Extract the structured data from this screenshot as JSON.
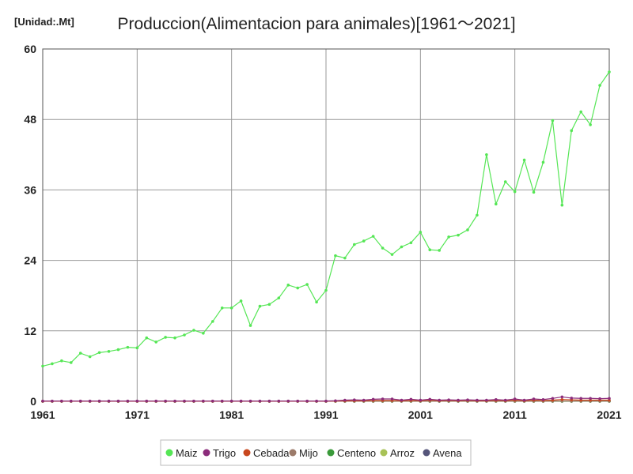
{
  "unit_label": "[Unidad:.Mt]",
  "chart_data": {
    "type": "line",
    "title": "Produccion(Alimentacion para animales)[1961～2021]",
    "ylim": [
      0,
      60
    ],
    "xlim": [
      1961,
      2021
    ],
    "yticks": [
      0,
      12,
      24,
      36,
      48,
      60
    ],
    "xticks": [
      1961,
      1971,
      1981,
      1991,
      2001,
      2011,
      2021
    ],
    "grid": true,
    "legend_position": "bottom",
    "x": [
      1961,
      1962,
      1963,
      1964,
      1965,
      1966,
      1967,
      1968,
      1969,
      1970,
      1971,
      1972,
      1973,
      1974,
      1975,
      1976,
      1977,
      1978,
      1979,
      1980,
      1981,
      1982,
      1983,
      1984,
      1985,
      1986,
      1987,
      1988,
      1989,
      1990,
      1991,
      1992,
      1993,
      1994,
      1995,
      1996,
      1997,
      1998,
      1999,
      2000,
      2001,
      2002,
      2003,
      2004,
      2005,
      2006,
      2007,
      2008,
      2009,
      2010,
      2011,
      2012,
      2013,
      2014,
      2015,
      2016,
      2017,
      2018,
      2019,
      2020,
      2021
    ],
    "series": [
      {
        "name": "Maiz",
        "color": "#55e655",
        "values": [
          6.0,
          6.4,
          6.9,
          6.6,
          8.2,
          7.6,
          8.3,
          8.5,
          8.8,
          9.2,
          9.1,
          10.8,
          10.1,
          10.9,
          10.8,
          11.3,
          12.1,
          11.6,
          13.6,
          15.9,
          15.9,
          17.1,
          12.9,
          16.2,
          16.5,
          17.6,
          19.8,
          19.3,
          19.9,
          16.9,
          18.9,
          24.8,
          24.4,
          26.7,
          27.3,
          28.1,
          26.1,
          25.0,
          26.3,
          27.0,
          28.8,
          25.8,
          25.7,
          28.0,
          28.3,
          29.2,
          31.7,
          42.0,
          33.6,
          37.4,
          35.7,
          41.1,
          35.6,
          40.7,
          47.8,
          33.4,
          46.1,
          49.3,
          47.1,
          53.8,
          56.1
        ]
      },
      {
        "name": "Trigo",
        "color": "#8b2c7b",
        "values": [
          0.05,
          0.05,
          0.05,
          0.05,
          0.05,
          0.05,
          0.05,
          0.05,
          0.05,
          0.05,
          0.05,
          0.05,
          0.05,
          0.05,
          0.05,
          0.05,
          0.05,
          0.05,
          0.05,
          0.05,
          0.05,
          0.05,
          0.05,
          0.05,
          0.05,
          0.05,
          0.05,
          0.05,
          0.05,
          0.05,
          0.05,
          0.1,
          0.2,
          0.25,
          0.2,
          0.35,
          0.4,
          0.4,
          0.2,
          0.35,
          0.2,
          0.35,
          0.2,
          0.25,
          0.2,
          0.25,
          0.2,
          0.2,
          0.3,
          0.2,
          0.4,
          0.2,
          0.4,
          0.3,
          0.5,
          0.75,
          0.55,
          0.5,
          0.5,
          0.45,
          0.5
        ]
      },
      {
        "name": "Cebada",
        "color": "#c8471e",
        "values": [
          0.02,
          0.02,
          0.02,
          0.02,
          0.02,
          0.02,
          0.02,
          0.02,
          0.02,
          0.02,
          0.02,
          0.02,
          0.02,
          0.02,
          0.02,
          0.02,
          0.02,
          0.02,
          0.02,
          0.02,
          0.02,
          0.02,
          0.02,
          0.02,
          0.02,
          0.02,
          0.02,
          0.02,
          0.02,
          0.02,
          0.02,
          0.05,
          0.08,
          0.1,
          0.1,
          0.15,
          0.15,
          0.15,
          0.1,
          0.15,
          0.1,
          0.2,
          0.1,
          0.15,
          0.1,
          0.15,
          0.1,
          0.1,
          0.15,
          0.1,
          0.2,
          0.1,
          0.2,
          0.15,
          0.2,
          0.3,
          0.25,
          0.2,
          0.2,
          0.2,
          0.2
        ]
      },
      {
        "name": "Mijo",
        "color": "#9c7b6a",
        "values": [
          0.01,
          0.01,
          0.01,
          0.01,
          0.01,
          0.01,
          0.01,
          0.01,
          0.01,
          0.01,
          0.01,
          0.01,
          0.01,
          0.01,
          0.01,
          0.01,
          0.01,
          0.01,
          0.01,
          0.01,
          0.01,
          0.01,
          0.01,
          0.01,
          0.01,
          0.01,
          0.01,
          0.01,
          0.01,
          0.01,
          0.01,
          0.02,
          0.02,
          0.02,
          0.02,
          0.03,
          0.03,
          0.03,
          0.02,
          0.03,
          0.02,
          0.03,
          0.02,
          0.03,
          0.02,
          0.03,
          0.02,
          0.02,
          0.03,
          0.02,
          0.03,
          0.02,
          0.03,
          0.02,
          0.03,
          0.04,
          0.03,
          0.03,
          0.03,
          0.03,
          0.03
        ]
      },
      {
        "name": "Centeno",
        "color": "#3a9a3a",
        "values": [
          0.01,
          0.01,
          0.01,
          0.01,
          0.01,
          0.01,
          0.01,
          0.01,
          0.01,
          0.01,
          0.01,
          0.01,
          0.01,
          0.01,
          0.01,
          0.01,
          0.01,
          0.01,
          0.01,
          0.01,
          0.01,
          0.01,
          0.01,
          0.01,
          0.01,
          0.01,
          0.01,
          0.01,
          0.01,
          0.01,
          0.01,
          0.01,
          0.01,
          0.01,
          0.01,
          0.01,
          0.01,
          0.01,
          0.01,
          0.01,
          0.01,
          0.01,
          0.01,
          0.01,
          0.01,
          0.01,
          0.01,
          0.01,
          0.01,
          0.01,
          0.01,
          0.01,
          0.01,
          0.01,
          0.01,
          0.01,
          0.01,
          0.01,
          0.01,
          0.01,
          0.01
        ]
      },
      {
        "name": "Arroz",
        "color": "#a8c257",
        "values": [
          0.01,
          0.01,
          0.01,
          0.01,
          0.01,
          0.01,
          0.01,
          0.01,
          0.01,
          0.01,
          0.01,
          0.01,
          0.01,
          0.01,
          0.01,
          0.01,
          0.01,
          0.01,
          0.01,
          0.01,
          0.01,
          0.01,
          0.01,
          0.01,
          0.01,
          0.01,
          0.01,
          0.01,
          0.01,
          0.01,
          0.01,
          0.01,
          0.01,
          0.01,
          0.01,
          0.01,
          0.01,
          0.01,
          0.01,
          0.01,
          0.01,
          0.01,
          0.01,
          0.01,
          0.01,
          0.01,
          0.01,
          0.01,
          0.01,
          0.01,
          0.01,
          0.01,
          0.01,
          0.01,
          0.01,
          0.01,
          0.01,
          0.01,
          0.01,
          0.01,
          0.01
        ]
      },
      {
        "name": "Avena",
        "color": "#55557a",
        "values": [
          0.01,
          0.01,
          0.01,
          0.01,
          0.01,
          0.01,
          0.01,
          0.01,
          0.01,
          0.01,
          0.01,
          0.01,
          0.01,
          0.01,
          0.01,
          0.01,
          0.01,
          0.01,
          0.01,
          0.01,
          0.01,
          0.01,
          0.01,
          0.01,
          0.01,
          0.01,
          0.01,
          0.01,
          0.01,
          0.01,
          0.01,
          0.01,
          0.01,
          0.01,
          0.01,
          0.01,
          0.01,
          0.01,
          0.01,
          0.01,
          0.01,
          0.01,
          0.01,
          0.01,
          0.01,
          0.01,
          0.01,
          0.01,
          0.01,
          0.01,
          0.01,
          0.01,
          0.01,
          0.01,
          0.01,
          0.01,
          0.01,
          0.01,
          0.01,
          0.01,
          0.01
        ]
      }
    ]
  }
}
